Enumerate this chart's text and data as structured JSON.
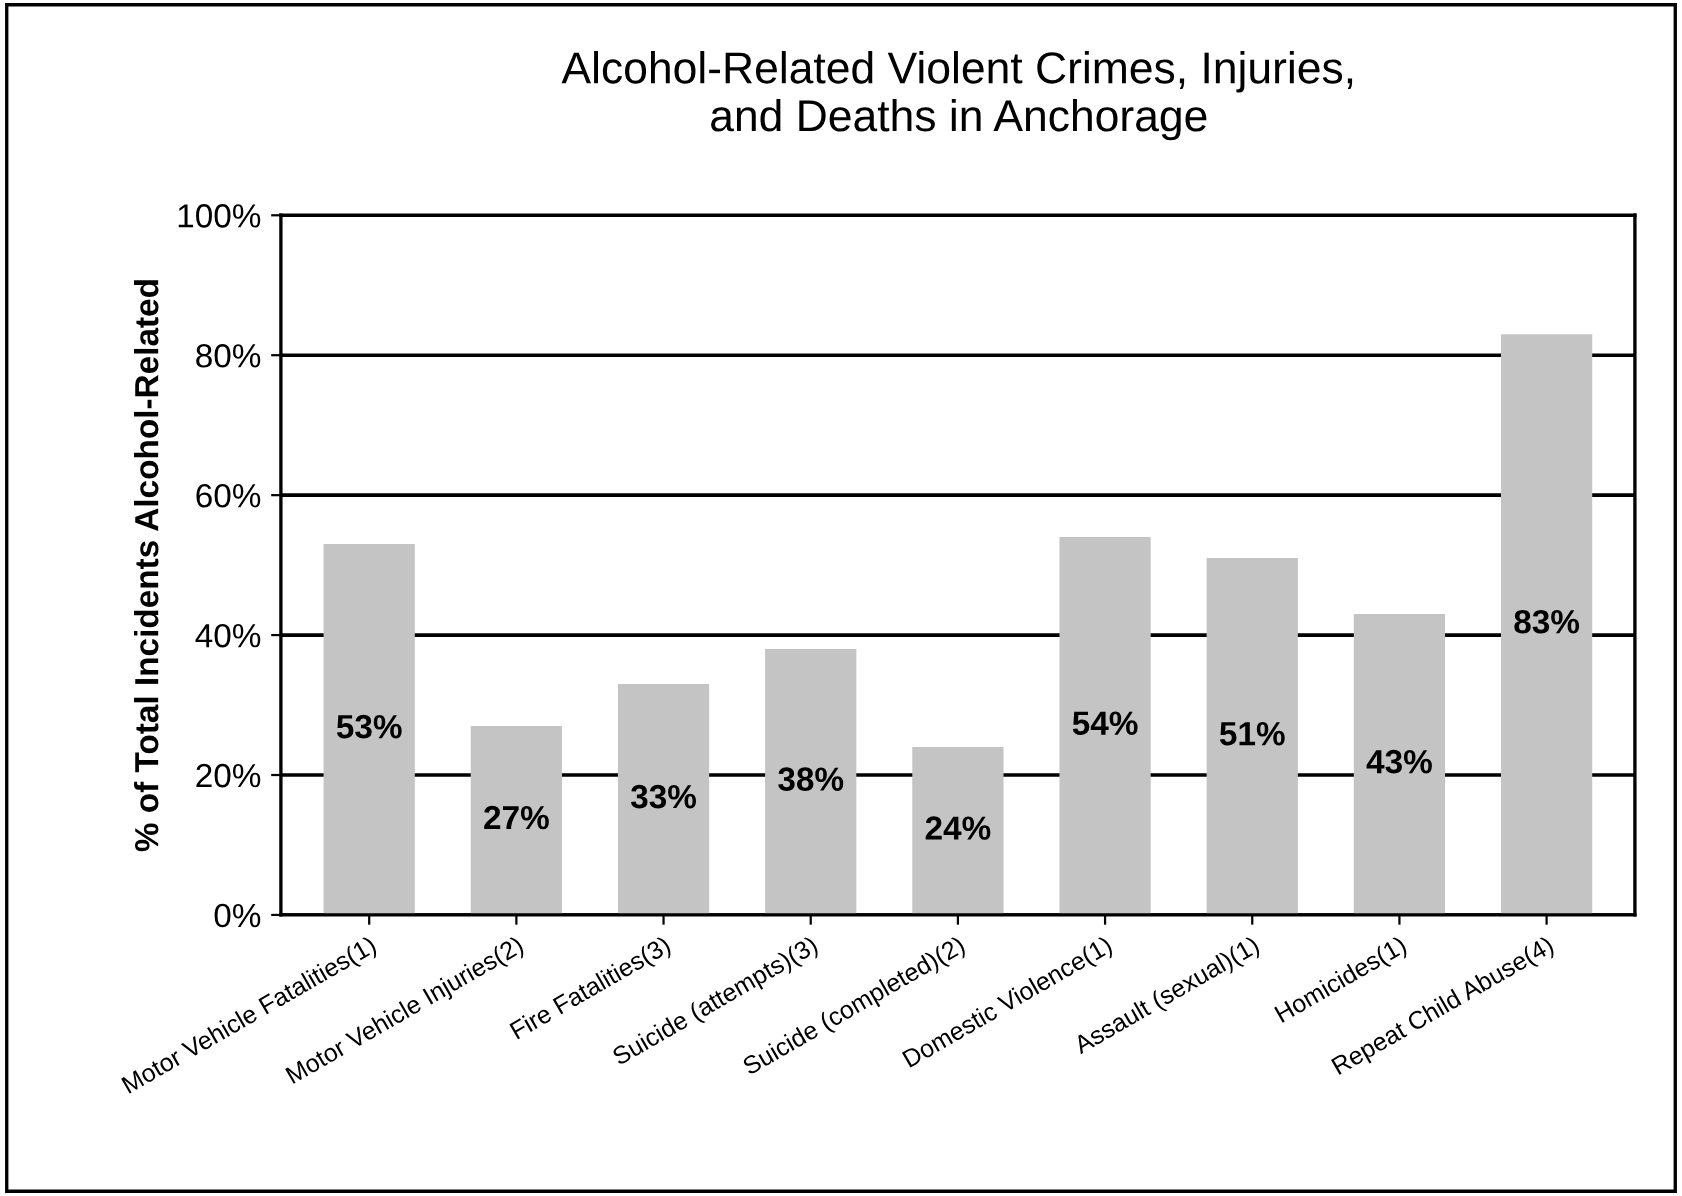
{
  "chart_data": {
    "type": "bar",
    "title": "Alcohol-Related Violent Crimes, Injuries,\nand Deaths in Anchorage",
    "ylabel": "% of Total Incidents Alcohol-Related",
    "categories": [
      "Motor Vehicle Fatalities(1)",
      "Motor Vehicle Injuries(2)",
      "Fire Fatalities(3)",
      "Suicide (attempts)(3)",
      "Suicide (completed)(2)",
      "Domestic Violence(1)",
      "Assault (sexual)(1)",
      "Homicides(1)",
      "Repeat Child Abuse(4)"
    ],
    "values": [
      53,
      27,
      33,
      38,
      24,
      54,
      51,
      43,
      83
    ],
    "value_labels": [
      "53%",
      "27%",
      "33%",
      "38%",
      "24%",
      "54%",
      "51%",
      "43%",
      "83%"
    ],
    "color": "#c4c4c4",
    "ylim": [
      0,
      100
    ],
    "yticks": [
      {
        "value": 0,
        "label": "0%"
      },
      {
        "value": 20,
        "label": "20%"
      },
      {
        "value": 40,
        "label": "40%"
      },
      {
        "value": 60,
        "label": "60%"
      },
      {
        "value": 80,
        "label": "80%"
      },
      {
        "value": 100,
        "label": "100%"
      }
    ],
    "grid": "y"
  }
}
